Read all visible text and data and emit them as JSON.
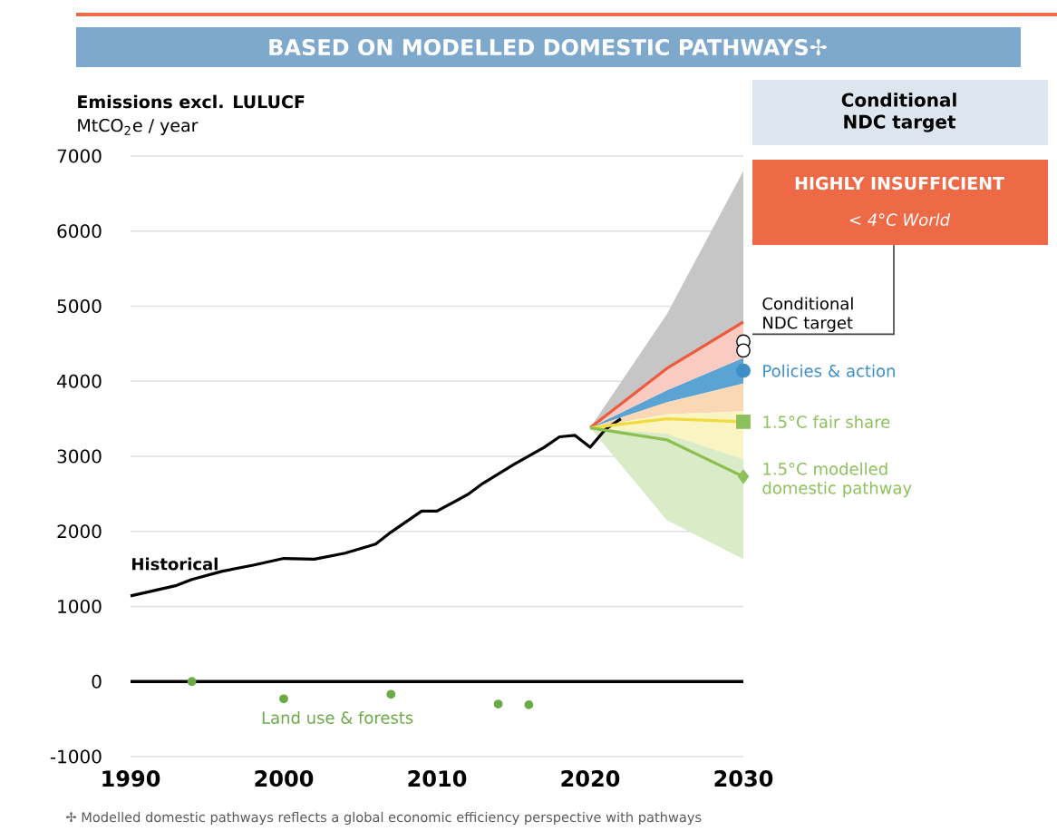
{
  "chart_data": {
    "type": "line",
    "title": "BASED ON MODELLED DOMESTIC PATHWAYS✢",
    "ylabel": "Emissions excl. LULUCF",
    "annotations": [
      "MtCO$_{2}$e / year",
      "Conditional NDC target",
      "HIGHLY INSUFFICIENT",
      "< 4°C World",
      "✢ Modelled domestic pathways reflects a global economic efficiency perspective with pathways"
    ],
    "xlim": [
      1990,
      2030
    ],
    "xticks": [
      1990,
      2000,
      2010,
      2020,
      2030
    ],
    "ylim": [
      -1000,
      7000
    ],
    "yticks": [
      -1000,
      0,
      1000,
      2000,
      3000,
      4000,
      5000,
      6000,
      7000
    ],
    "grid": "y",
    "ref_lines": [
      {
        "axis": "y",
        "value": 0,
        "color": "#000000"
      }
    ],
    "series": [
      {
        "color": "#c6c6c6",
        "x": [
          2020,
          2025,
          2030
        ],
        "values": [
          null,
          null,
          null
        ],
        "lower": [
          3380,
          4170,
          4790
        ],
        "upper": [
          3380,
          4890,
          6800
        ]
      },
      {
        "color": "#5aa3d2",
        "x": [
          2020,
          2025,
          2030
        ],
        "values": [
          null,
          null,
          null
        ],
        "lower": [
          3380,
          3720,
          3970
        ],
        "upper": [
          3380,
          3880,
          4310
        ]
      },
      {
        "color": "#fad7b5",
        "x": [
          2020,
          2025,
          2030
        ],
        "values": [
          null,
          null,
          null
        ],
        "lower": [
          3380,
          3560,
          3600
        ],
        "upper": [
          3380,
          3720,
          3970
        ]
      },
      {
        "name": "Historical",
        "color": "#000000",
        "x": [
          1990,
          1993,
          1994,
          1996,
          1998,
          2000,
          2002,
          2004,
          2006,
          2007,
          2009,
          2010,
          2012,
          2013,
          2015,
          2017,
          2018,
          2019,
          2020,
          2021,
          2022
        ],
        "values": [
          1140,
          1280,
          1360,
          1470,
          1550,
          1640,
          1630,
          1710,
          1830,
          1990,
          2270,
          2270,
          2490,
          2640,
          2890,
          3120,
          3260,
          3280,
          3120,
          3360,
          3500
        ]
      },
      {
        "color": "#ec5b3d",
        "x": [
          2020,
          2025,
          2030
        ],
        "values": [
          3380,
          4170,
          4790
        ],
        "lower": [
          3380,
          3880,
          4310
        ],
        "upper": [
          3380,
          4170,
          4790
        ]
      },
      {
        "color": "#f0dc40",
        "x": [
          2020,
          2025,
          2030
        ],
        "values": [
          3380,
          3500,
          3460
        ],
        "lower": [
          3380,
          3300,
          2960
        ],
        "upper": [
          3380,
          3560,
          3600
        ]
      },
      {
        "color": "#8cbf4f",
        "x": [
          2020,
          2025,
          2030
        ],
        "values": [
          3380,
          3220,
          2730
        ],
        "lower": [
          3380,
          2150,
          1630
        ],
        "upper": [
          3380,
          3300,
          2960
        ]
      },
      {
        "name": "Conditional NDC target",
        "type": "scatter",
        "marker": "circle",
        "color": "#ffffff",
        "x": [
          2030,
          2030
        ],
        "values": [
          4530,
          4410
        ]
      },
      {
        "name": "Policies & action",
        "type": "scatter",
        "marker": "circle",
        "color": "#3d8fc6",
        "x": [
          2030
        ],
        "values": [
          4140
        ]
      },
      {
        "name": "1.5°C fair share",
        "type": "scatter",
        "marker": "square",
        "color": "#8dc05a",
        "x": [
          2030
        ],
        "values": [
          3460
        ]
      },
      {
        "name": "1.5°C modelled domestic pathway",
        "type": "scatter",
        "marker": "diamond",
        "color": "#8dc05a",
        "x": [
          2030
        ],
        "values": [
          2730
        ]
      },
      {
        "name": "Land use & forests",
        "type": "scatter",
        "marker": "circle",
        "color": "#6aaa48",
        "x": [
          1994,
          2000,
          2007,
          2014,
          2016
        ],
        "values": [
          0,
          -230,
          -170,
          -300,
          -310
        ]
      }
    ]
  }
}
